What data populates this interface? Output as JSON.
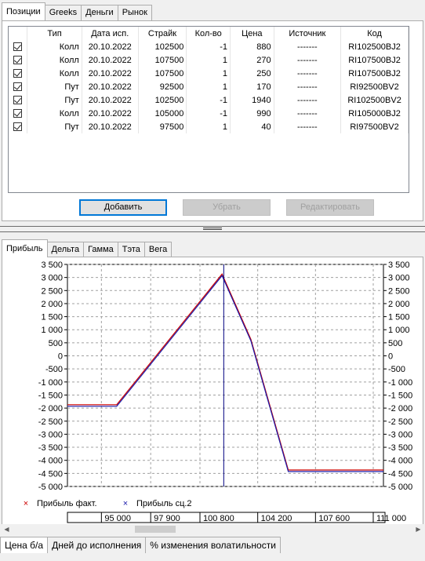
{
  "top_tabs": [
    "Позиции",
    "Greeks",
    "Деньги",
    "Рынок"
  ],
  "positions": {
    "columns": [
      "",
      "Тип",
      "Дата исп.",
      "Страйк",
      "Кол-во",
      "Цена",
      "Источник",
      "Код"
    ],
    "rows": [
      {
        "checked": true,
        "type": "Колл",
        "date": "20.10.2022",
        "strike": "102500",
        "qty": "-1",
        "price": "880",
        "source": "-------",
        "code": "RI102500BJ2"
      },
      {
        "checked": true,
        "type": "Колл",
        "date": "20.10.2022",
        "strike": "107500",
        "qty": "1",
        "price": "270",
        "source": "-------",
        "code": "RI107500BJ2"
      },
      {
        "checked": true,
        "type": "Колл",
        "date": "20.10.2022",
        "strike": "107500",
        "qty": "1",
        "price": "250",
        "source": "-------",
        "code": "RI107500BJ2"
      },
      {
        "checked": true,
        "type": "Пут",
        "date": "20.10.2022",
        "strike": "92500",
        "qty": "1",
        "price": "170",
        "source": "-------",
        "code": "RI92500BV2"
      },
      {
        "checked": true,
        "type": "Пут",
        "date": "20.10.2022",
        "strike": "102500",
        "qty": "-1",
        "price": "1940",
        "source": "-------",
        "code": "RI102500BV2"
      },
      {
        "checked": true,
        "type": "Колл",
        "date": "20.10.2022",
        "strike": "105000",
        "qty": "-1",
        "price": "990",
        "source": "-------",
        "code": "RI105000BJ2"
      },
      {
        "checked": true,
        "type": "Пут",
        "date": "20.10.2022",
        "strike": "97500",
        "qty": "1",
        "price": "40",
        "source": "-------",
        "code": "RI97500BV2"
      }
    ]
  },
  "buttons": {
    "add": "Добавить",
    "remove": "Убрать",
    "edit": "Редактировать"
  },
  "chart_tabs": [
    "Прибыль",
    "Дельта",
    "Гамма",
    "Тэта",
    "Вега"
  ],
  "bottom_tabs": [
    "Цена б/а",
    "Дней до исполнения",
    "% изменения волатильности"
  ],
  "colors": {
    "fact": "#cc0000",
    "scenario2": "#1a1aaa",
    "cursor": "#000080"
  },
  "icons": {
    "checkbox": "checkmark-icon",
    "scroll_left": "arrow-left-icon",
    "scroll_right": "arrow-right-icon"
  },
  "chart_data": {
    "type": "line",
    "ylim": [
      -5000,
      3500
    ],
    "y_ticks": [
      "3 500",
      "3 000",
      "2 500",
      "2 000",
      "1 500",
      "1 000",
      "500",
      "0",
      "-500",
      "-1 000",
      "-1 500",
      "-2 000",
      "-2 500",
      "-3 000",
      "-3 500",
      "-4 000",
      "-4 500",
      "-5 000"
    ],
    "y_tick_values": [
      3500,
      3000,
      2500,
      2000,
      1500,
      1000,
      500,
      0,
      -500,
      -1000,
      -1500,
      -2000,
      -2500,
      -3000,
      -3500,
      -4000,
      -4500,
      -5000
    ],
    "x_ticks": [
      "95 000",
      "97 900",
      "100 800",
      "104 200",
      "107 600",
      "111 000"
    ],
    "x_tick_values": [
      95000,
      97900,
      100800,
      104200,
      107600,
      111000
    ],
    "xlim": [
      93000,
      111600
    ],
    "grid": true,
    "legend_position": "bottom-left",
    "cursor_x": 102200,
    "series": [
      {
        "name": "Прибыль факт.",
        "marker": "x",
        "color": "#cc0000",
        "x": [
          93000,
          95900,
          102100,
          103800,
          106000,
          111600
        ],
        "y": [
          -1900,
          -1900,
          3100,
          600,
          -4400,
          -4400
        ]
      },
      {
        "name": "Прибыль сц.2",
        "marker": "x",
        "color": "#1a1aaa",
        "x": [
          93000,
          95900,
          102100,
          103800,
          106000,
          111600
        ],
        "y": [
          -1900,
          -1900,
          3100,
          600,
          -4400,
          -4400
        ]
      }
    ]
  }
}
